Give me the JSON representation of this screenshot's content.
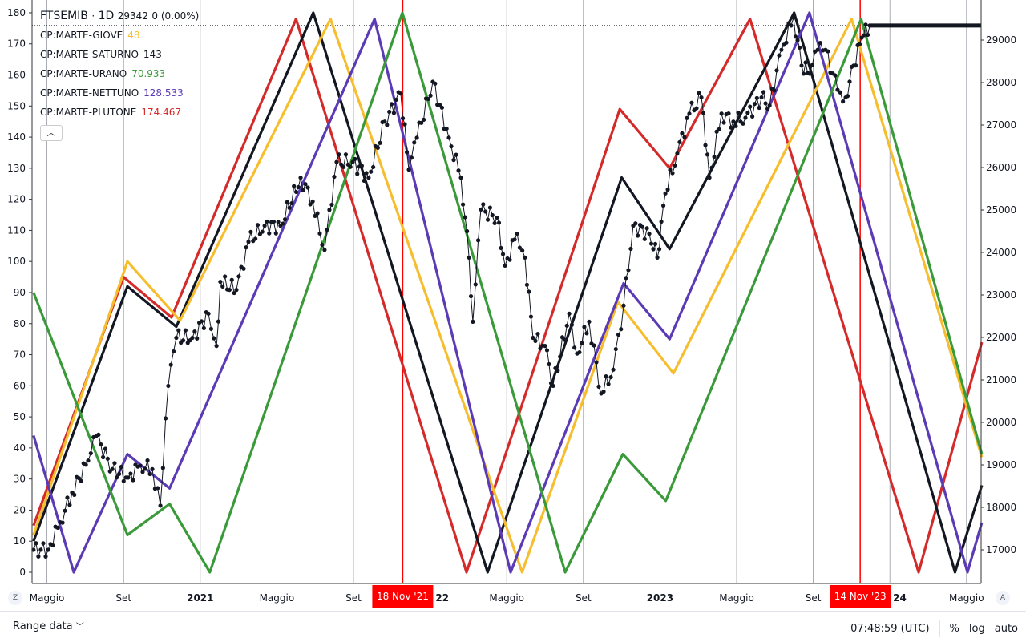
{
  "legend": {
    "symbol": "FTSEMIB",
    "interval": "1D",
    "last": "29342",
    "change": "0 (0.00%)",
    "indicators": [
      {
        "name": "CP:MARTE-GIOVE",
        "value": "48",
        "color": "#f6be2e"
      },
      {
        "name": "CP:MARTE-SATURNO",
        "value": "143",
        "color": "#131722"
      },
      {
        "name": "CP:MARTE-URANO",
        "value": "70.933",
        "color": "#3a9a3a"
      },
      {
        "name": "CP:MARTE-NETTUNO",
        "value": "128.533",
        "color": "#5b3bb5"
      },
      {
        "name": "CP:MARTE-PLUTONE",
        "value": "174.467",
        "color": "#d42a2a"
      }
    ],
    "collapse_icon": "chevron-up-icon"
  },
  "bottom": {
    "range_label": "Range data",
    "time": "07:48:59 (UTC)",
    "percent": "%",
    "log": "log",
    "auto": "auto",
    "left_btn": "Z",
    "right_btn": "A"
  },
  "chart_data": {
    "type": "line",
    "title": "FTSEMIB 1D",
    "x_unit": "months since Jan 2020",
    "xlim": [
      3.3,
      52.8
    ],
    "left_axis": {
      "ylim": [
        0,
        180
      ],
      "ticks": [
        0,
        10,
        20,
        30,
        40,
        50,
        60,
        70,
        80,
        90,
        100,
        110,
        120,
        130,
        140,
        150,
        160,
        170,
        180
      ]
    },
    "right_axis": {
      "ylim": [
        16500,
        29700
      ],
      "ticks": [
        17000,
        18000,
        19000,
        20000,
        21000,
        22000,
        23000,
        24000,
        25000,
        26000,
        27000,
        28000,
        29000
      ]
    },
    "x_ticks": [
      {
        "m": 4,
        "label": "Maggio",
        "bold": false
      },
      {
        "m": 8,
        "label": "Set",
        "bold": false
      },
      {
        "m": 12,
        "label": "2021",
        "bold": true
      },
      {
        "m": 16,
        "label": "Maggio",
        "bold": false
      },
      {
        "m": 20,
        "label": "Set",
        "bold": false
      },
      {
        "m": 24,
        "label": "22",
        "bold": true
      },
      {
        "m": 28,
        "label": "Maggio",
        "bold": false
      },
      {
        "m": 32,
        "label": "Set",
        "bold": false
      },
      {
        "m": 36,
        "label": "2023",
        "bold": true
      },
      {
        "m": 40,
        "label": "Maggio",
        "bold": false
      },
      {
        "m": 44,
        "label": "Set",
        "bold": false
      },
      {
        "m": 48,
        "label": "24",
        "bold": true
      },
      {
        "m": 52,
        "label": "Maggio",
        "bold": false
      }
    ],
    "markers": [
      {
        "m": 22.57,
        "label": "18 Nov '21",
        "color": "#f00"
      },
      {
        "m": 46.45,
        "label": "14 Nov '23",
        "color": "#f00"
      }
    ],
    "last_price": 29342,
    "series": [
      {
        "name": "CP:MARTE-PLUTONE",
        "axis": "left",
        "color": "#d42a2a",
        "points": [
          [
            3.3,
            15
          ],
          [
            8.0,
            95
          ],
          [
            10.5,
            82
          ],
          [
            17.0,
            178
          ],
          [
            25.9,
            0
          ],
          [
            33.9,
            149
          ],
          [
            36.5,
            130
          ],
          [
            40.7,
            178
          ],
          [
            49.5,
            0
          ],
          [
            52.8,
            74
          ]
        ]
      },
      {
        "name": "CP:MARTE-SATURNO",
        "axis": "left",
        "color": "#131722",
        "points": [
          [
            3.3,
            10
          ],
          [
            8.2,
            92
          ],
          [
            10.75,
            79
          ],
          [
            17.9,
            180
          ],
          [
            27.0,
            0
          ],
          [
            34.0,
            127
          ],
          [
            36.5,
            104
          ],
          [
            43.0,
            180
          ],
          [
            51.4,
            0
          ],
          [
            52.8,
            28
          ]
        ]
      },
      {
        "name": "CP:MARTE-GIOVE",
        "axis": "left",
        "color": "#f6be2e",
        "points": [
          [
            3.3,
            12
          ],
          [
            8.2,
            100
          ],
          [
            10.95,
            81
          ],
          [
            18.8,
            178
          ],
          [
            28.8,
            0
          ],
          [
            33.8,
            87
          ],
          [
            36.7,
            64
          ],
          [
            46.0,
            178
          ],
          [
            52.8,
            37
          ]
        ]
      },
      {
        "name": "CP:MARTE-NETTUNO",
        "axis": "left",
        "color": "#5b3bb5",
        "points": [
          [
            3.3,
            44
          ],
          [
            5.4,
            0
          ],
          [
            8.2,
            38
          ],
          [
            10.4,
            27
          ],
          [
            21.1,
            178
          ],
          [
            28.2,
            0
          ],
          [
            34.1,
            93
          ],
          [
            36.5,
            75
          ],
          [
            43.8,
            180
          ],
          [
            52.05,
            0
          ],
          [
            52.8,
            16
          ]
        ]
      },
      {
        "name": "CP:MARTE-URANO",
        "axis": "left",
        "color": "#3a9a3a",
        "points": [
          [
            3.3,
            90
          ],
          [
            8.2,
            12
          ],
          [
            10.4,
            22
          ],
          [
            12.5,
            0
          ],
          [
            22.55,
            180
          ],
          [
            31.05,
            0
          ],
          [
            34.06,
            38
          ],
          [
            36.3,
            23
          ],
          [
            46.5,
            178
          ],
          [
            52.8,
            38
          ]
        ]
      },
      {
        "name": "FTSEMIB",
        "axis": "right",
        "color": "#131722",
        "points": [
          [
            3.3,
            17000
          ],
          [
            4.06,
            17000
          ],
          [
            4.69,
            17650
          ],
          [
            5.31,
            18350
          ],
          [
            6.15,
            19100
          ],
          [
            6.57,
            19680
          ],
          [
            7.41,
            18900
          ],
          [
            8.24,
            18700
          ],
          [
            8.87,
            18980
          ],
          [
            9.5,
            18900
          ],
          [
            9.92,
            18040
          ],
          [
            10.33,
            20860
          ],
          [
            10.75,
            21990
          ],
          [
            11.59,
            21990
          ],
          [
            12.43,
            22560
          ],
          [
            12.85,
            21800
          ],
          [
            13.05,
            23310
          ],
          [
            13.89,
            23120
          ],
          [
            14.52,
            24250
          ],
          [
            15.36,
            24630
          ],
          [
            16.19,
            24630
          ],
          [
            17.24,
            25760
          ],
          [
            17.87,
            25200
          ],
          [
            18.49,
            24060
          ],
          [
            19.12,
            26130
          ],
          [
            19.96,
            26130
          ],
          [
            20.79,
            25760
          ],
          [
            21.63,
            27080
          ],
          [
            22.47,
            27740
          ],
          [
            22.89,
            25950
          ],
          [
            23.31,
            26700
          ],
          [
            24.14,
            28020
          ],
          [
            24.98,
            26700
          ],
          [
            25.61,
            25760
          ],
          [
            26.03,
            23880
          ],
          [
            26.23,
            22370
          ],
          [
            26.65,
            25010
          ],
          [
            27.49,
            24820
          ],
          [
            27.91,
            23690
          ],
          [
            28.54,
            24440
          ],
          [
            28.95,
            23880
          ],
          [
            29.37,
            21990
          ],
          [
            30.0,
            21800
          ],
          [
            30.42,
            20860
          ],
          [
            31.26,
            22560
          ],
          [
            31.67,
            21620
          ],
          [
            32.3,
            22370
          ],
          [
            32.93,
            20680
          ],
          [
            33.56,
            21240
          ],
          [
            34.1,
            22750
          ],
          [
            34.6,
            24630
          ],
          [
            35.44,
            24440
          ],
          [
            35.86,
            23880
          ],
          [
            36.28,
            25390
          ],
          [
            36.9,
            26330
          ],
          [
            37.53,
            27270
          ],
          [
            38.16,
            27650
          ],
          [
            38.58,
            25760
          ],
          [
            39.21,
            27270
          ],
          [
            39.83,
            27080
          ],
          [
            40.46,
            27170
          ],
          [
            41.3,
            27650
          ],
          [
            41.72,
            27460
          ],
          [
            42.34,
            28770
          ],
          [
            42.97,
            29530
          ],
          [
            43.39,
            28400
          ],
          [
            43.81,
            28210
          ],
          [
            44.23,
            28770
          ],
          [
            44.64,
            28770
          ],
          [
            45.27,
            27830
          ],
          [
            45.69,
            27650
          ],
          [
            46.11,
            28400
          ],
          [
            46.53,
            29056
          ],
          [
            46.95,
            29342
          ]
        ]
      }
    ]
  }
}
